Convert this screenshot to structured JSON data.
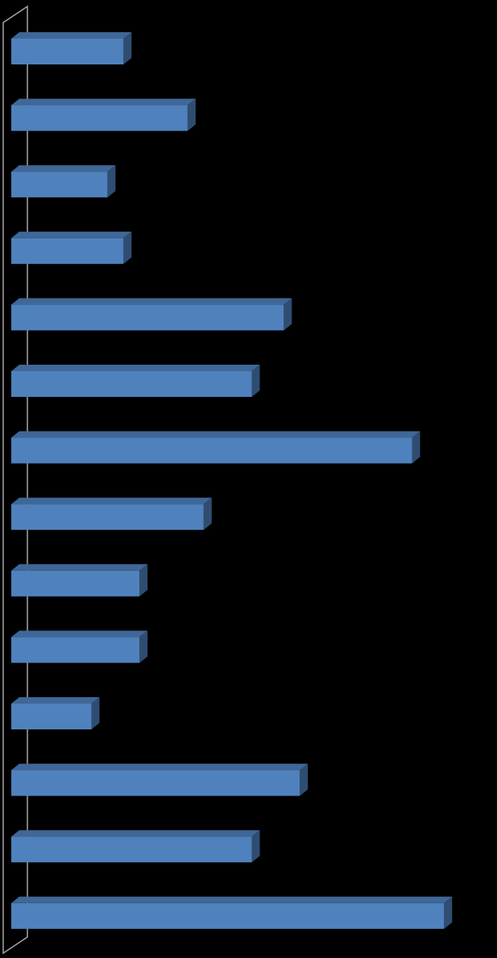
{
  "chart_data": {
    "type": "bar",
    "orientation": "horizontal",
    "three_d": true,
    "categories": [
      null,
      null,
      null,
      null,
      null,
      null,
      null,
      null,
      null,
      null,
      null,
      null,
      null,
      null
    ],
    "values": [
      7,
      11,
      6,
      7,
      17,
      15,
      25,
      12,
      8,
      8,
      5,
      18,
      15,
      27
    ],
    "color": "#4f81bd",
    "xlim": [
      0,
      30
    ]
  }
}
